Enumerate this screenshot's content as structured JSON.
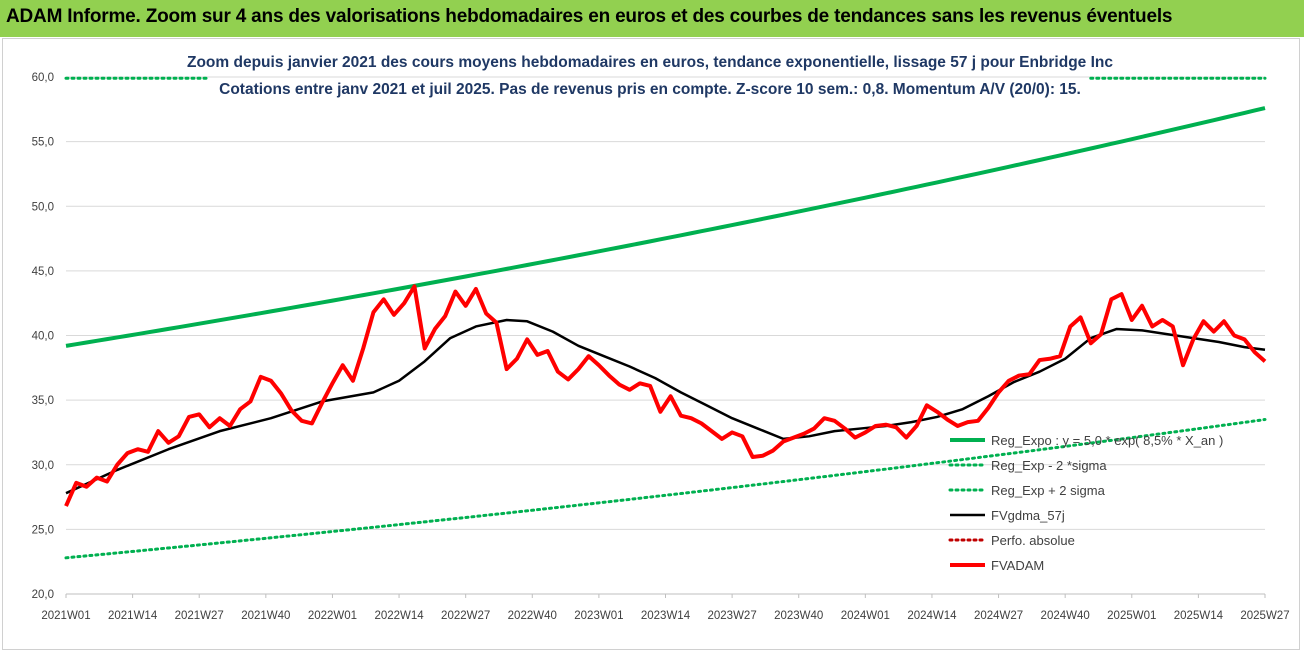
{
  "header": {
    "title": "ADAM Informe. Zoom sur 4 ans des valorisations hebdomadaires en euros et des courbes de tendances sans les revenus éventuels"
  },
  "colors": {
    "banner": "#92d050",
    "reg_expo": "#00b050",
    "gdma": "#000000",
    "perfo": "#c00000",
    "fvadam": "#ff0000",
    "title_text": "#1f3864"
  },
  "chart_data": {
    "type": "line",
    "title": "Zoom depuis janvier 2021 des cours moyens hebdomadaires en euros, tendance exponentielle, lissage 57 j pour Enbridge Inc",
    "subtitle": "Cotations entre janv 2021 et juil 2025. Pas de revenus pris en compte. Z-score 10 sem.: 0,8. Momentum A/V (20/0): 15.",
    "ylim": [
      20,
      60
    ],
    "y_ticks": [
      "20,0",
      "25,0",
      "30,0",
      "35,0",
      "40,0",
      "45,0",
      "50,0",
      "55,0",
      "60,0"
    ],
    "x_ticks": [
      "2021W01",
      "2021W14",
      "2021W27",
      "2021W40",
      "2022W01",
      "2022W14",
      "2022W27",
      "2022W40",
      "2023W01",
      "2023W14",
      "2023W27",
      "2023W40",
      "2024W01",
      "2024W14",
      "2024W27",
      "2024W40",
      "2025W01",
      "2025W14",
      "2025W27"
    ],
    "grid": "horizontal",
    "legend_position": "right",
    "series": [
      {
        "name": "Reg_Expo : y = 5,0 * exp( 8,5% * X_an )",
        "style": "solid-thick",
        "color": "#00b050",
        "x": [
          0,
          234
        ],
        "values": [
          39.2,
          57.6
        ],
        "curve": "exponential"
      },
      {
        "name": "Reg_Exp - 2 *sigma",
        "style": "dotted",
        "color": "#00b050",
        "x": [
          0,
          234
        ],
        "values": [
          22.8,
          33.5
        ],
        "curve": "exponential"
      },
      {
        "name": "Reg_Exp + 2 sigma",
        "style": "dotted",
        "color": "#00b050",
        "x": [
          0,
          234
        ],
        "values": [
          59.9,
          59.9
        ],
        "curve": "flat"
      },
      {
        "name": "FVgdma_57j",
        "style": "solid",
        "color": "#000000",
        "x": [
          0,
          10,
          20,
          30,
          40,
          50,
          60,
          65,
          70,
          75,
          80,
          86,
          90,
          95,
          100,
          105,
          110,
          115,
          120,
          125,
          130,
          135,
          140,
          145,
          150,
          155,
          160,
          165,
          170,
          175,
          180,
          185,
          190,
          195,
          200,
          205,
          210,
          215,
          220,
          225,
          230,
          234
        ],
        "values": [
          27.8,
          29.6,
          31.2,
          32.6,
          33.6,
          34.9,
          35.6,
          36.5,
          38.0,
          39.8,
          40.7,
          41.2,
          41.1,
          40.3,
          39.2,
          38.4,
          37.6,
          36.7,
          35.6,
          34.6,
          33.6,
          32.8,
          32.0,
          32.2,
          32.6,
          32.8,
          33.0,
          33.3,
          33.7,
          34.3,
          35.3,
          36.4,
          37.2,
          38.2,
          39.8,
          40.5,
          40.4,
          40.1,
          39.8,
          39.5,
          39.1,
          38.9
        ]
      },
      {
        "name": "Perfo. absolue",
        "style": "dotted",
        "color": "#c00000",
        "x": [],
        "values": []
      },
      {
        "name": "FVADAM",
        "style": "solid-thick",
        "color": "#ff0000",
        "x": [
          0,
          2,
          4,
          6,
          8,
          10,
          12,
          14,
          16,
          18,
          20,
          22,
          24,
          26,
          28,
          30,
          32,
          34,
          36,
          38,
          40,
          42,
          44,
          46,
          48,
          50,
          52,
          54,
          56,
          58,
          60,
          62,
          64,
          66,
          68,
          70,
          72,
          74,
          76,
          78,
          80,
          82,
          84,
          86,
          88,
          90,
          92,
          94,
          96,
          98,
          100,
          102,
          104,
          106,
          108,
          110,
          112,
          114,
          116,
          118,
          120,
          122,
          124,
          126,
          128,
          130,
          132,
          134,
          136,
          138,
          140,
          142,
          144,
          146,
          148,
          150,
          152,
          154,
          156,
          158,
          160,
          162,
          164,
          166,
          168,
          170,
          172,
          174,
          176,
          178,
          180,
          182,
          184,
          186,
          188,
          190,
          192,
          194,
          196,
          198,
          200,
          202,
          204,
          206,
          208,
          210,
          212,
          214,
          216,
          218,
          220,
          222,
          224,
          226,
          228,
          230,
          232,
          234
        ],
        "values": [
          26.8,
          28.6,
          28.3,
          29.0,
          28.7,
          30.0,
          30.9,
          31.2,
          31.0,
          32.6,
          31.7,
          32.2,
          33.7,
          33.9,
          32.9,
          33.6,
          33.0,
          34.3,
          34.9,
          36.8,
          36.5,
          35.5,
          34.2,
          33.4,
          33.2,
          34.8,
          36.3,
          37.7,
          36.5,
          39.0,
          41.8,
          42.8,
          41.6,
          42.5,
          43.8,
          39.0,
          40.5,
          41.5,
          43.4,
          42.3,
          43.6,
          41.7,
          41.0,
          37.4,
          38.2,
          39.7,
          38.5,
          38.8,
          37.2,
          36.6,
          37.4,
          38.4,
          37.7,
          36.9,
          36.2,
          35.8,
          36.3,
          36.1,
          34.1,
          35.3,
          33.8,
          33.6,
          33.2,
          32.6,
          32.0,
          32.5,
          32.2,
          30.6,
          30.7,
          31.1,
          31.8,
          32.1,
          32.4,
          32.8,
          33.6,
          33.4,
          32.8,
          32.1,
          32.5,
          33.0,
          33.1,
          32.9,
          32.1,
          33.0,
          34.6,
          34.1,
          33.5,
          33.0,
          33.3,
          33.4,
          34.4,
          35.6,
          36.5,
          36.9,
          37.0,
          38.1,
          38.2,
          38.4,
          40.7,
          41.4,
          39.4,
          40.1,
          42.8,
          43.2,
          41.2,
          42.3,
          40.7,
          41.2,
          40.7,
          37.7,
          39.7,
          41.1,
          40.3,
          41.1,
          40.0,
          39.7,
          38.7,
          38.0
        ]
      }
    ]
  }
}
